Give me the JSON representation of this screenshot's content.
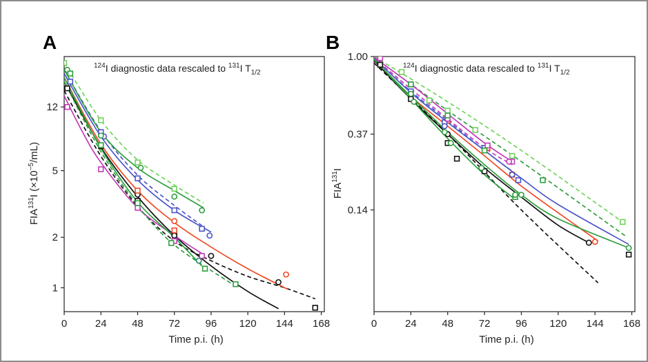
{
  "colors": {
    "green": "#2e9e3e",
    "light_green": "#6fd35a",
    "blue": "#4b56c8",
    "red": "#ee4a25",
    "magenta": "#c23cb8",
    "black": "#111111",
    "teal": "#2a8a70"
  },
  "chart_data": [
    {
      "type": "line",
      "panel_label": "A",
      "annotation": {
        "iso1": "124",
        "text1": "I diagnostic data rescaled to ",
        "iso2": "131",
        "text2": "I T",
        "sub": "1/2"
      },
      "xlabel": "Time p.i. (h)",
      "ylabel": {
        "pre": "FIA",
        "sup": "131",
        "mid": "I (×10",
        "exp": "−5",
        "post": "/mL)"
      },
      "xlim": [
        0,
        170
      ],
      "ylim": [
        0.72,
        24
      ],
      "y_scale": "log",
      "x_ticks": [
        0,
        24,
        48,
        72,
        96,
        120,
        144,
        168
      ],
      "y_ticks": [
        1,
        2,
        5,
        12
      ],
      "series": [
        {
          "color": "black",
          "style": "solid",
          "x": [
            0,
            24,
            48,
            72,
            96,
            120,
            140
          ],
          "y": [
            17,
            6.9,
            3.5,
            2.05,
            1.35,
            0.95,
            0.75
          ]
        },
        {
          "color": "black",
          "style": "dashed",
          "x": [
            0,
            24,
            48,
            72,
            96,
            120,
            144,
            164
          ],
          "y": [
            15,
            6.1,
            3.05,
            1.9,
            1.45,
            1.17,
            1,
            0.86
          ]
        },
        {
          "color": "red",
          "style": "solid",
          "x": [
            0,
            24,
            48,
            72,
            96,
            120,
            146
          ],
          "y": [
            18,
            7.2,
            3.8,
            2.45,
            1.75,
            1.3,
            0.98
          ]
        },
        {
          "color": "blue",
          "style": "solid",
          "x": [
            0,
            24,
            48,
            72,
            96
          ],
          "y": [
            19,
            8,
            4.4,
            2.9,
            2.15
          ]
        },
        {
          "color": "blue",
          "style": "dashed",
          "x": [
            0,
            24,
            48,
            72,
            90
          ],
          "y": [
            20,
            8.6,
            4.7,
            3.1,
            2.35
          ]
        },
        {
          "color": "green",
          "style": "solid",
          "x": [
            0,
            24,
            48,
            72,
            91
          ],
          "y": [
            20,
            8.5,
            5.2,
            3.8,
            3.0
          ]
        },
        {
          "color": "light_green",
          "style": "dashed",
          "x": [
            0,
            24,
            48,
            72,
            91
          ],
          "y": [
            22,
            10,
            5.8,
            4.1,
            3.2
          ]
        },
        {
          "color": "magenta",
          "style": "solid",
          "x": [
            0,
            12,
            24,
            48,
            72,
            90
          ],
          "y": [
            14,
            8.5,
            5.6,
            3.0,
            2.05,
            1.6
          ]
        },
        {
          "color": "green",
          "style": "solid",
          "x": [
            0,
            24,
            48,
            72,
            90
          ],
          "y": [
            18,
            6.8,
            3.25,
            2.0,
            1.35
          ]
        },
        {
          "color": "green",
          "style": "dashed",
          "x": [
            0,
            24,
            48,
            72,
            110
          ],
          "y": [
            17,
            6.5,
            3.1,
            1.8,
            1.05
          ]
        }
      ],
      "markers": [
        {
          "color": "black",
          "shape": "square",
          "x": [
            2,
            24,
            48,
            72,
            164
          ],
          "y": [
            15.5,
            7,
            3.3,
            2.1,
            0.76
          ]
        },
        {
          "color": "black",
          "shape": "circle",
          "x": [
            48,
            72,
            96,
            140
          ],
          "y": [
            3.6,
            2.05,
            1.55,
            1.08
          ]
        },
        {
          "color": "red",
          "shape": "circle",
          "x": [
            72,
            145
          ],
          "y": [
            2.5,
            1.2
          ]
        },
        {
          "color": "red",
          "shape": "square",
          "x": [
            48,
            72
          ],
          "y": [
            3.8,
            2.2
          ]
        },
        {
          "color": "blue",
          "shape": "square",
          "x": [
            4,
            24,
            48,
            72,
            90
          ],
          "y": [
            17,
            8.5,
            4.5,
            2.9,
            2.25
          ]
        },
        {
          "color": "blue",
          "shape": "circle",
          "x": [
            26,
            95
          ],
          "y": [
            8,
            2.05
          ]
        },
        {
          "color": "green",
          "shape": "circle",
          "x": [
            2,
            24,
            50,
            72,
            90
          ],
          "y": [
            20,
            8.1,
            5.2,
            3.5,
            2.9
          ]
        },
        {
          "color": "light_green",
          "shape": "square",
          "x": [
            0,
            24,
            48,
            72
          ],
          "y": [
            22,
            10,
            5.6,
            3.9
          ]
        },
        {
          "color": "magenta",
          "shape": "square",
          "x": [
            2,
            24,
            48,
            72,
            90
          ],
          "y": [
            12,
            5.1,
            3.0,
            1.9,
            1.55
          ]
        },
        {
          "color": "green",
          "shape": "square",
          "x": [
            4,
            24,
            48,
            70,
            92,
            112
          ],
          "y": [
            19,
            7.1,
            3.2,
            1.85,
            1.3,
            1.05
          ]
        },
        {
          "color": "teal",
          "shape": "circle",
          "x": [
            88
          ],
          "y": [
            1.45
          ]
        }
      ]
    },
    {
      "type": "line",
      "panel_label": "B",
      "annotation": {
        "iso1": "124",
        "text1": "I diagnostic data rescaled to ",
        "iso2": "131",
        "text2": "I T",
        "sub": "1/2"
      },
      "xlabel": "Time p.i. (h)",
      "ylabel": {
        "pre": "FIA",
        "sup": "131",
        "post": "I"
      },
      "xlim": [
        0,
        170
      ],
      "ylim": [
        0.038,
        1.0
      ],
      "y_scale": "log",
      "x_ticks": [
        0,
        24,
        48,
        72,
        96,
        120,
        144,
        168
      ],
      "y_tick_labels": [
        "1.00",
        "0.37",
        "0.14"
      ],
      "y_tick_values": [
        1.0,
        0.37,
        0.14
      ],
      "series": [
        {
          "color": "black",
          "style": "dashed",
          "x": [
            0,
            48,
            96,
            146
          ],
          "y": [
            0.92,
            0.37,
            0.14,
            0.055
          ]
        },
        {
          "color": "black",
          "style": "solid",
          "x": [
            0,
            24,
            48,
            72,
            96,
            120,
            140
          ],
          "y": [
            0.95,
            0.58,
            0.37,
            0.24,
            0.165,
            0.115,
            0.092
          ]
        },
        {
          "color": "red",
          "style": "solid",
          "x": [
            0,
            24,
            48,
            72,
            96,
            120,
            146
          ],
          "y": [
            0.96,
            0.6,
            0.41,
            0.28,
            0.19,
            0.135,
            0.094
          ]
        },
        {
          "color": "blue",
          "style": "solid",
          "x": [
            0,
            24,
            48,
            72,
            96,
            120,
            166
          ],
          "y": [
            0.98,
            0.63,
            0.43,
            0.3,
            0.21,
            0.15,
            0.09
          ]
        },
        {
          "color": "green",
          "style": "solid",
          "x": [
            0,
            24,
            48,
            72,
            96,
            120,
            166
          ],
          "y": [
            0.96,
            0.6,
            0.38,
            0.25,
            0.17,
            0.125,
            0.086
          ]
        },
        {
          "color": "light_green",
          "style": "dashed",
          "x": [
            0,
            48,
            96,
            162
          ],
          "y": [
            1.0,
            0.56,
            0.3,
            0.12
          ]
        },
        {
          "color": "green",
          "style": "dashed",
          "x": [
            0,
            48,
            96,
            164
          ],
          "y": [
            0.99,
            0.5,
            0.26,
            0.1
          ]
        },
        {
          "color": "magenta",
          "style": "solid",
          "x": [
            0,
            24,
            48,
            72,
            90
          ],
          "y": [
            0.99,
            0.7,
            0.48,
            0.33,
            0.26
          ]
        },
        {
          "color": "magenta",
          "style": "dashed",
          "x": [
            0,
            24,
            48,
            72,
            90
          ],
          "y": [
            0.98,
            0.66,
            0.45,
            0.31,
            0.25
          ]
        },
        {
          "color": "blue",
          "style": "dashed",
          "x": [
            0,
            24,
            48,
            72,
            90
          ],
          "y": [
            0.97,
            0.64,
            0.44,
            0.3,
            0.23
          ]
        },
        {
          "color": "green",
          "style": "solid",
          "x": [
            0,
            24,
            48,
            72,
            92
          ],
          "y": [
            0.97,
            0.58,
            0.35,
            0.22,
            0.16
          ]
        }
      ],
      "markers": [
        {
          "color": "black",
          "shape": "square",
          "x": [
            4,
            24,
            48,
            54,
            72,
            166
          ],
          "y": [
            0.9,
            0.58,
            0.33,
            0.27,
            0.23,
            0.079
          ]
        },
        {
          "color": "black",
          "shape": "circle",
          "x": [
            48,
            70,
            140
          ],
          "y": [
            0.37,
            0.24,
            0.092
          ]
        },
        {
          "color": "red",
          "shape": "circle",
          "x": [
            144
          ],
          "y": [
            0.093
          ]
        },
        {
          "color": "red",
          "shape": "square",
          "x": [
            48,
            74,
            90
          ],
          "y": [
            0.44,
            0.31,
            0.22
          ]
        },
        {
          "color": "blue",
          "shape": "square",
          "x": [
            24,
            46,
            72,
            94
          ],
          "y": [
            0.64,
            0.43,
            0.31,
            0.205
          ]
        },
        {
          "color": "blue",
          "shape": "circle",
          "x": [
            46,
            90
          ],
          "y": [
            0.41,
            0.22
          ]
        },
        {
          "color": "green",
          "shape": "circle",
          "x": [
            24,
            46,
            70,
            96,
            166
          ],
          "y": [
            0.62,
            0.38,
            0.24,
            0.17,
            0.086
          ]
        },
        {
          "color": "light_green",
          "shape": "square",
          "x": [
            18,
            36,
            48,
            66,
            90,
            162
          ],
          "y": [
            0.82,
            0.57,
            0.5,
            0.39,
            0.28,
            0.12
          ]
        },
        {
          "color": "magenta",
          "shape": "square",
          "x": [
            4,
            24,
            48,
            74,
            90
          ],
          "y": [
            0.98,
            0.7,
            0.45,
            0.32,
            0.26
          ]
        },
        {
          "color": "magenta",
          "shape": "circle",
          "x": [
            48,
            88
          ],
          "y": [
            0.45,
            0.26
          ]
        },
        {
          "color": "green",
          "shape": "square",
          "x": [
            24,
            48,
            72,
            92,
            110
          ],
          "y": [
            0.7,
            0.47,
            0.3,
            0.165,
            0.205
          ]
        },
        {
          "color": "green",
          "shape": "circle",
          "x": [
            26,
            50,
            92
          ],
          "y": [
            0.56,
            0.33,
            0.17
          ]
        }
      ]
    }
  ]
}
